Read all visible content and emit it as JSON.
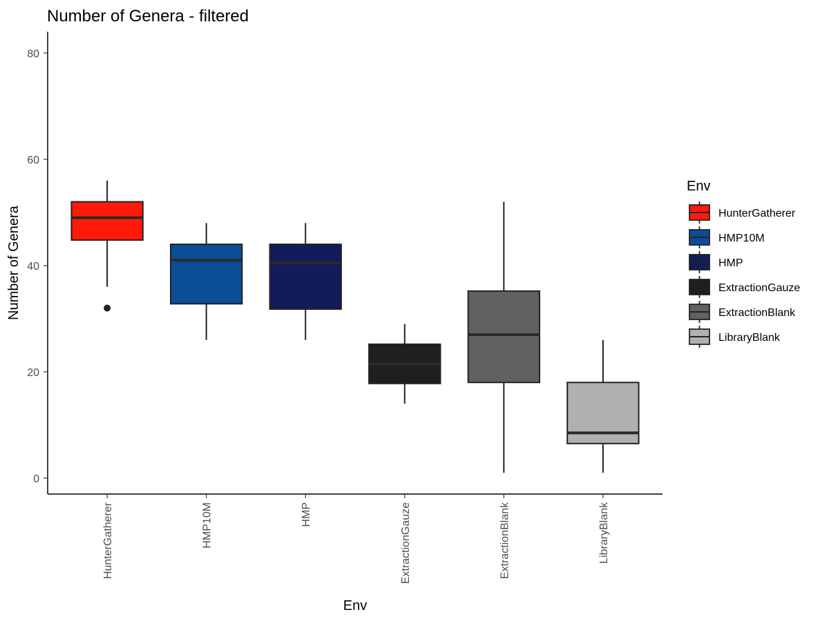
{
  "chart_data": {
    "type": "boxplot",
    "title": "Number of Genera - filtered",
    "xlabel": "Env",
    "ylabel": "Number of Genera",
    "ylim": [
      -3,
      84
    ],
    "yticks": [
      0,
      20,
      40,
      60,
      80
    ],
    "grid": false,
    "legend": {
      "title": "Env",
      "position": "right"
    },
    "categories": [
      "HunterGatherer",
      "HMP10M",
      "HMP",
      "ExtractionGauze",
      "ExtractionBlank",
      "LibraryBlank"
    ],
    "series": [
      {
        "name": "HunterGatherer",
        "color": "#ff1a0a",
        "min": 36,
        "q1": 44.8,
        "median": 49,
        "q3": 52,
        "max": 56,
        "outliers": [
          32
        ]
      },
      {
        "name": "HMP10M",
        "color": "#0b4d96",
        "min": 26,
        "q1": 32.8,
        "median": 41,
        "q3": 44,
        "max": 48,
        "outliers": []
      },
      {
        "name": "HMP",
        "color": "#121c5a",
        "min": 26,
        "q1": 31.8,
        "median": 40.5,
        "q3": 44,
        "max": 48,
        "outliers": []
      },
      {
        "name": "ExtractionGauze",
        "color": "#1f1f1f",
        "min": 14,
        "q1": 17.8,
        "median": 21.5,
        "q3": 25.2,
        "max": 29,
        "outliers": []
      },
      {
        "name": "ExtractionBlank",
        "color": "#616161",
        "min": 1,
        "q1": 18,
        "median": 27,
        "q3": 35.2,
        "max": 52,
        "outliers": []
      },
      {
        "name": "LibraryBlank",
        "color": "#b0b0b0",
        "min": 1,
        "q1": 6.5,
        "median": 8.5,
        "q3": 18,
        "max": 26,
        "outliers": []
      }
    ]
  }
}
